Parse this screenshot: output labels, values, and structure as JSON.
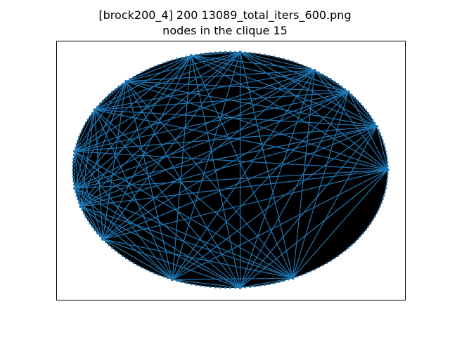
{
  "figure": {
    "title_line1": "[brock200_4] 200 13089_total_iters_600.png",
    "title_line2": "nodes in the clique 15"
  },
  "graph": {
    "total_nodes": 200,
    "clique_size": 15,
    "node_fill_color": "#000000",
    "base_edge_color": "#000000",
    "clique_edge_color": "#1f77b4",
    "clique_node_indices": [
      0,
      12,
      23,
      32,
      48,
      58,
      73,
      83,
      95,
      105,
      110,
      120,
      138,
      152,
      163
    ]
  }
}
